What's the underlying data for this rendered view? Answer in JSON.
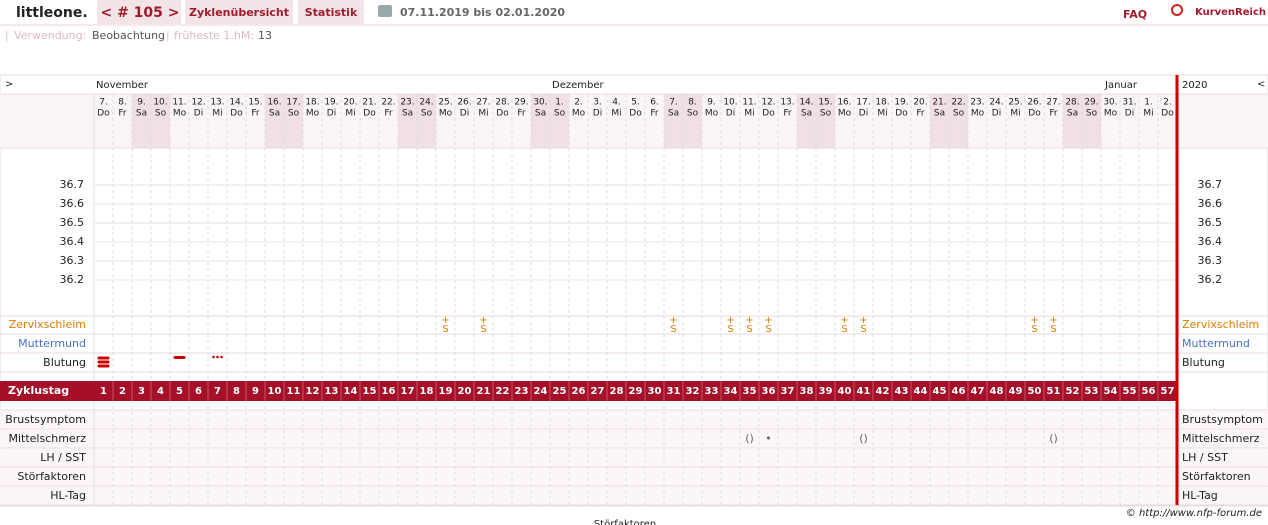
{
  "header": {
    "brand": "littleone.",
    "cycle_nav": "< # 105 >",
    "tabs": [
      "Zyklenübersicht",
      "Statistik"
    ],
    "date_range": "07.11.2019 bis 02.01.2020",
    "faq": "FAQ",
    "logo": "KurvenReich"
  },
  "info": {
    "usage_label": "Verwendung:",
    "usage_value": "Beobachtung",
    "earliest_label": "früheste 1.hM:",
    "earliest_value": "13"
  },
  "chart_data": {
    "type": "nfp-cycle",
    "nav_prev": ">",
    "nav_next": "<",
    "year": "2020",
    "months": [
      "November",
      "Dezember",
      "Januar"
    ],
    "dates": [
      "7.",
      "8.",
      "9.",
      "10.",
      "11.",
      "12.",
      "13.",
      "14.",
      "15.",
      "16.",
      "17.",
      "18.",
      "19.",
      "20.",
      "21.",
      "22.",
      "23.",
      "24.",
      "25.",
      "26.",
      "27.",
      "28.",
      "29.",
      "30.",
      "1.",
      "2.",
      "3.",
      "4.",
      "5.",
      "6.",
      "7.",
      "8.",
      "9.",
      "10.",
      "11.",
      "12.",
      "13.",
      "14.",
      "15.",
      "16.",
      "17.",
      "18.",
      "19.",
      "20.",
      "21.",
      "22.",
      "23.",
      "24.",
      "25.",
      "26.",
      "27.",
      "28.",
      "29.",
      "30.",
      "31.",
      "1.",
      "2."
    ],
    "weekdays": [
      "Do",
      "Fr",
      "Sa",
      "So",
      "Mo",
      "Di",
      "Mi",
      "Do",
      "Fr",
      "Sa",
      "So",
      "Mo",
      "Di",
      "Mi",
      "Do",
      "Fr",
      "Sa",
      "So",
      "Mo",
      "Di",
      "Mi",
      "Do",
      "Fr",
      "Sa",
      "So",
      "Mo",
      "Di",
      "Mi",
      "Do",
      "Fr",
      "Sa",
      "So",
      "Mo",
      "Di",
      "Mi",
      "Do",
      "Fr",
      "Sa",
      "So",
      "Mo",
      "Di",
      "Mi",
      "Do",
      "Fr",
      "Sa",
      "So",
      "Mo",
      "Di",
      "Mi",
      "Do",
      "Fr",
      "Sa",
      "So",
      "Mo",
      "Di",
      "Mi",
      "Do"
    ],
    "ylim": [
      36.1,
      36.8
    ],
    "yticks": [
      36.7,
      36.6,
      36.5,
      36.4,
      36.3,
      36.2
    ],
    "rows": {
      "cervix": "Zervixschleim",
      "cervix_pos": "Muttermund",
      "bleeding": "Blutung",
      "cycle_day": "Zyklustag",
      "breast": "Brustsymptom",
      "midpain": "Mittelschmerz",
      "lh": "LH / SST",
      "disturb": "Störfaktoren",
      "hl": "HL-Tag"
    },
    "cycle_days": [
      1,
      2,
      3,
      4,
      5,
      6,
      7,
      8,
      9,
      10,
      11,
      12,
      13,
      14,
      15,
      16,
      17,
      18,
      19,
      20,
      21,
      22,
      23,
      24,
      25,
      26,
      27,
      28,
      29,
      30,
      31,
      32,
      33,
      34,
      35,
      36,
      37,
      38,
      39,
      40,
      41,
      42,
      43,
      44,
      45,
      46,
      47,
      48,
      49,
      50,
      51,
      52,
      53,
      54,
      55,
      56,
      57
    ],
    "cervix_days": [
      19,
      21,
      31,
      34,
      35,
      36,
      40,
      41,
      50,
      51
    ],
    "cervix_symbol": "S+",
    "bleeding_days": [
      1,
      5,
      7
    ],
    "bleeding_strength": [
      3,
      2,
      1
    ],
    "midpain_days": [
      35,
      36,
      41,
      51
    ],
    "midpain_marks": [
      "()",
      "•",
      "()",
      "()"
    ],
    "footer": "© http://www.nfp-forum.de",
    "bottom_label": "Störfaktoren"
  }
}
